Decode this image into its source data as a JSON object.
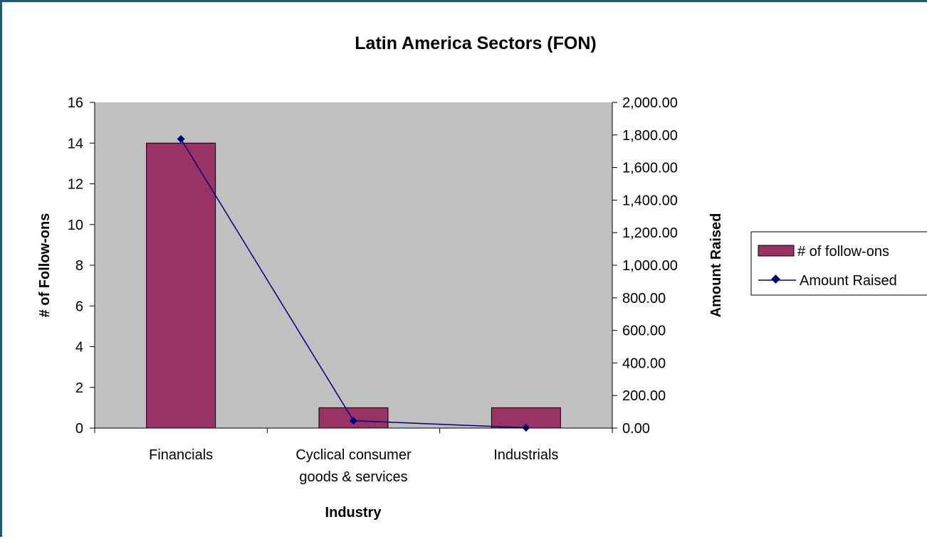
{
  "chart_data": {
    "type": "bar",
    "title": "Latin America Sectors (FON)",
    "xlabel": "Industry",
    "ylabel": "# of Follow-ons",
    "y2label": "Amount Raised",
    "categories": [
      [
        "Financials"
      ],
      [
        "Cyclical consumer",
        "goods & services"
      ],
      [
        "Industrials"
      ]
    ],
    "ylim": [
      0,
      16
    ],
    "yticks": [
      "0",
      "2",
      "4",
      "6",
      "8",
      "10",
      "12",
      "14",
      "16"
    ],
    "y2lim": [
      0,
      2000
    ],
    "y2ticks": [
      "0.00",
      "200.00",
      "400.00",
      "600.00",
      "800.00",
      "1,000.00",
      "1,200.00",
      "1,400.00",
      "1,600.00",
      "1,800.00",
      "2,000.00"
    ],
    "grid": false,
    "legend_position": "right",
    "series": [
      {
        "name": "# of follow-ons",
        "type": "bar",
        "axis": "left",
        "values": [
          14,
          1,
          1
        ],
        "color": "#993366"
      },
      {
        "name": "Amount Raised",
        "type": "line",
        "axis": "right",
        "values": [
          1775,
          45,
          2
        ],
        "color": "#000080"
      }
    ],
    "plot_background": "#c0c0c0"
  }
}
